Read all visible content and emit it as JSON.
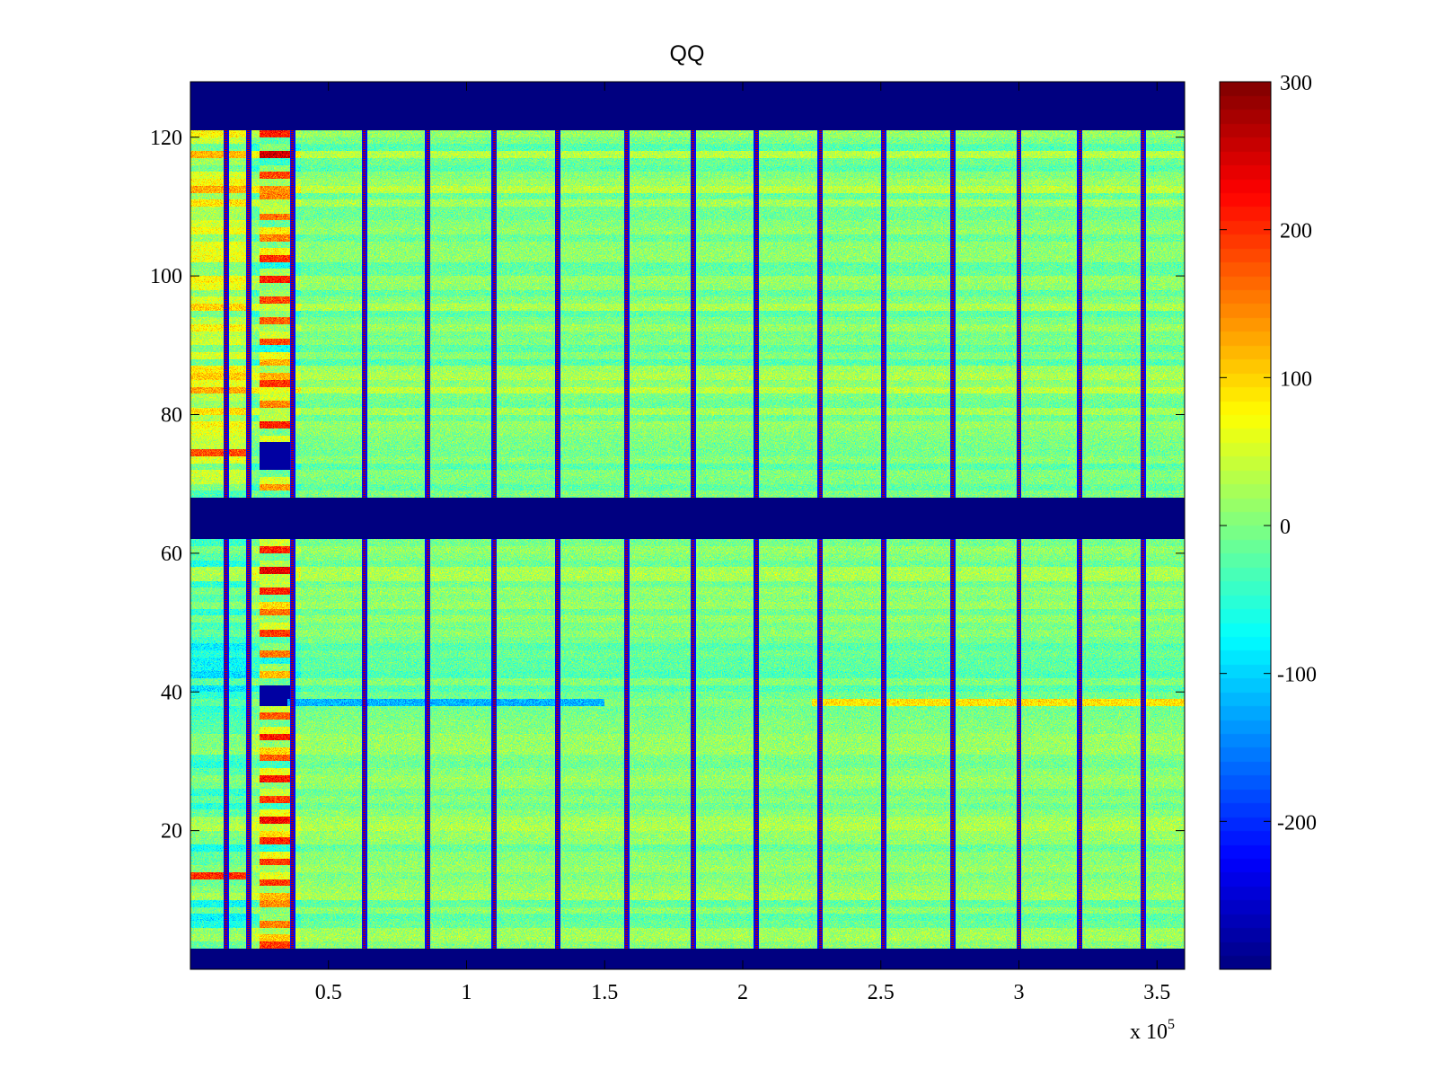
{
  "chart_data": {
    "type": "heatmap",
    "title": "QQ",
    "xlabel": "",
    "ylabel": "",
    "x_exponent_label": "x 10",
    "x_exponent_power": "5",
    "xlim": [
      0,
      3.6
    ],
    "ylim": [
      0,
      128
    ],
    "x_ticks": [
      0.5,
      1,
      1.5,
      2,
      2.5,
      3,
      3.5
    ],
    "x_tick_labels": [
      "0.5",
      "1",
      "1.5",
      "2",
      "2.5",
      "3",
      "3.5"
    ],
    "y_ticks": [
      20,
      40,
      60,
      80,
      100,
      120
    ],
    "y_tick_labels": [
      "20",
      "40",
      "60",
      "80",
      "100",
      "120"
    ],
    "colormap": "jet",
    "clim": [
      -300,
      300
    ],
    "colorbar_ticks": [
      300,
      200,
      100,
      0,
      -100,
      -200
    ],
    "colorbar_tick_labels": [
      "300",
      "200",
      "100",
      "0",
      "-100",
      "-200"
    ],
    "masked_row_bands": [
      [
        0,
        3
      ],
      [
        62,
        68
      ],
      [
        121,
        128
      ]
    ],
    "background_level": 0,
    "vertical_stripe_x": [
      0.13,
      0.21,
      0.37,
      0.63,
      0.86,
      1.1,
      1.33,
      1.58,
      1.82,
      2.05,
      2.28,
      2.51,
      2.76,
      3.0,
      3.22,
      3.45
    ],
    "early_block": {
      "x_range": [
        0.25,
        0.36
      ],
      "notes": "high and low banded values around x=0.3"
    },
    "notable_rows": [
      {
        "row": 38,
        "x_range": [
          0.35,
          1.5
        ],
        "level": -120
      },
      {
        "row": 38,
        "x_range": [
          2.25,
          3.6
        ],
        "level": 90
      },
      {
        "row": 13,
        "x_range": [
          0,
          0.22
        ],
        "level": 200
      },
      {
        "row": 74,
        "x_range": [
          0,
          0.22
        ],
        "level": 180
      }
    ]
  }
}
